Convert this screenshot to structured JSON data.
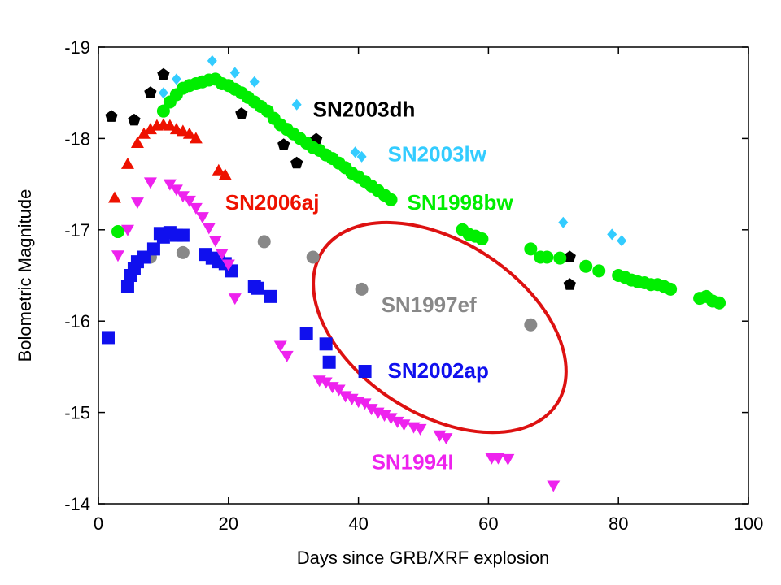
{
  "chart_data": {
    "type": "scatter",
    "title": "",
    "xlabel": "Days since GRB/XRF explosion",
    "ylabel": "Bolometric Magnitude",
    "xlim": [
      0,
      100
    ],
    "ylim": [
      -14,
      -19
    ],
    "y_inverted": true,
    "x_ticks": [
      0,
      20,
      40,
      60,
      80,
      100
    ],
    "y_ticks": [
      -19,
      -18,
      -17,
      -16,
      -15,
      -14
    ],
    "grid": false,
    "legend": "none",
    "series": [
      {
        "name": "SN2003dh",
        "color": "#000000",
        "marker": "pentagon",
        "x": [
          2,
          5.5,
          8,
          10,
          22,
          28.5,
          30.5,
          33.5,
          72.5,
          72.5
        ],
        "y": [
          -18.24,
          -18.2,
          -18.5,
          -18.7,
          -18.27,
          -17.93,
          -17.73,
          -17.99,
          -16.7,
          -16.4
        ]
      },
      {
        "name": "SN2003lw",
        "color": "#33ccff",
        "marker": "diamond",
        "x": [
          10,
          12,
          17.5,
          21,
          24,
          30.5,
          39.5,
          40.5,
          71.5,
          79,
          80.5
        ],
        "y": [
          -18.5,
          -18.65,
          -18.85,
          -18.72,
          -18.62,
          -18.37,
          -17.85,
          -17.8,
          -17.08,
          -16.95,
          -16.88
        ]
      },
      {
        "name": "SN1998bw",
        "color": "#00ee00",
        "marker": "circle",
        "x": [
          3,
          10,
          11,
          12,
          13,
          14,
          15,
          16,
          17,
          18,
          19,
          20,
          21,
          22,
          23,
          24,
          25,
          26,
          27,
          28,
          29,
          30,
          31,
          32,
          33,
          34,
          35,
          36,
          37,
          38,
          39,
          40,
          41,
          42,
          43,
          44,
          45,
          56,
          57,
          58,
          59,
          66.5,
          68,
          69,
          71,
          75,
          77,
          80,
          81,
          82,
          83,
          84,
          85,
          86,
          87,
          88,
          92.5,
          93.5,
          94.5,
          95.5
        ],
        "y": [
          -16.98,
          -18.3,
          -18.4,
          -18.48,
          -18.55,
          -18.58,
          -18.6,
          -18.62,
          -18.64,
          -18.65,
          -18.6,
          -18.58,
          -18.54,
          -18.5,
          -18.45,
          -18.4,
          -18.35,
          -18.3,
          -18.22,
          -18.15,
          -18.1,
          -18.05,
          -18.0,
          -17.95,
          -17.9,
          -17.87,
          -17.82,
          -17.78,
          -17.73,
          -17.68,
          -17.62,
          -17.58,
          -17.53,
          -17.48,
          -17.43,
          -17.38,
          -17.33,
          -17.0,
          -16.95,
          -16.93,
          -16.9,
          -16.79,
          -16.7,
          -16.7,
          -16.69,
          -16.6,
          -16.55,
          -16.5,
          -16.48,
          -16.45,
          -16.43,
          -16.42,
          -16.4,
          -16.4,
          -16.38,
          -16.35,
          -16.25,
          -16.27,
          -16.22,
          -16.2
        ]
      },
      {
        "name": "SN2006aj",
        "color": "#ee1100",
        "marker": "triangle-up",
        "x": [
          2.5,
          4.5,
          6,
          7,
          8,
          9,
          10,
          11,
          12,
          13,
          14,
          15,
          18.5,
          19.5
        ],
        "y": [
          -17.35,
          -17.72,
          -17.95,
          -18.05,
          -18.1,
          -18.14,
          -18.15,
          -18.14,
          -18.1,
          -18.08,
          -18.05,
          -18.0,
          -17.65,
          -17.6
        ]
      },
      {
        "name": "SN1997ef",
        "color": "#888888",
        "marker": "circle",
        "x": [
          8,
          13,
          25.5,
          33,
          40.5,
          66.5
        ],
        "y": [
          -16.7,
          -16.75,
          -16.87,
          -16.7,
          -16.35,
          -15.96
        ]
      },
      {
        "name": "SN2002ap",
        "color": "#1010ee",
        "marker": "square",
        "x": [
          1.5,
          4.5,
          5,
          5.5,
          6,
          7,
          8.5,
          9.5,
          10,
          11,
          12,
          13,
          16.5,
          17.5,
          18.5,
          19.5,
          20.5,
          24,
          24.5,
          26.5,
          32,
          35,
          35.5,
          41
        ],
        "y": [
          -15.82,
          -16.38,
          -16.5,
          -16.58,
          -16.65,
          -16.7,
          -16.79,
          -16.96,
          -16.92,
          -16.97,
          -16.94,
          -16.94,
          -16.73,
          -16.69,
          -16.65,
          -16.63,
          -16.55,
          -16.38,
          -16.36,
          -16.27,
          -15.86,
          -15.75,
          -15.55,
          -15.45
        ]
      },
      {
        "name": "SN1994I",
        "color": "#ee22ee",
        "marker": "triangle-down",
        "x": [
          3,
          4.5,
          6,
          8,
          11,
          12,
          13,
          14,
          15,
          16,
          17,
          18,
          19,
          20,
          21,
          28,
          29,
          34,
          35,
          36,
          37,
          38,
          39,
          40,
          41,
          42,
          43,
          44,
          45,
          46,
          47,
          48.5,
          49.5,
          52.5,
          53.5,
          60.5,
          61.5,
          63,
          70
        ],
        "y": [
          -16.72,
          -17.0,
          -17.3,
          -17.52,
          -17.5,
          -17.44,
          -17.37,
          -17.32,
          -17.24,
          -17.14,
          -17.02,
          -16.88,
          -16.74,
          -16.62,
          -16.25,
          -15.73,
          -15.62,
          -15.35,
          -15.33,
          -15.28,
          -15.25,
          -15.18,
          -15.15,
          -15.12,
          -15.1,
          -15.04,
          -15.0,
          -14.97,
          -14.94,
          -14.9,
          -14.87,
          -14.84,
          -14.82,
          -14.75,
          -14.72,
          -14.5,
          -14.5,
          -14.49,
          -14.2
        ]
      }
    ],
    "annotations": [
      {
        "text": "SN2003dh",
        "color": "#000000",
        "x": 33,
        "y": -18.24
      },
      {
        "text": "SN2003lw",
        "color": "#33ccff",
        "x": 44.5,
        "y": -17.75
      },
      {
        "text": "SN2006aj",
        "color": "#ee1100",
        "x": 19.5,
        "y": -17.22
      },
      {
        "text": "SN1998bw",
        "color": "#00ee00",
        "x": 47.5,
        "y": -17.22
      },
      {
        "text": "SN1997ef",
        "color": "#888888",
        "x": 43.5,
        "y": -16.1
      },
      {
        "text": "SN2002ap",
        "color": "#1010ee",
        "x": 44.5,
        "y": -15.38
      },
      {
        "text": "SN1994I",
        "color": "#ee22ee",
        "x": 42,
        "y": -14.38
      }
    ],
    "highlight": {
      "shape": "ellipse",
      "color": "#dd1111",
      "center_x": 52.5,
      "center_y": -15.93,
      "note": "encircles SN1997ef"
    }
  }
}
